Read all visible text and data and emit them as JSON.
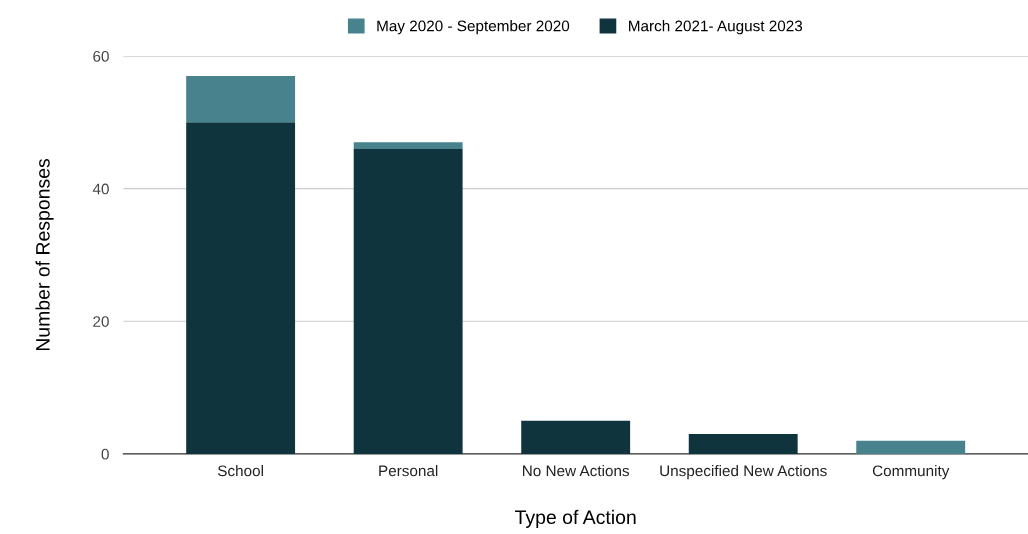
{
  "chart_data": {
    "type": "bar",
    "stacked": true,
    "xlabel": "Type of Action",
    "ylabel": "Number of Responses",
    "categories": [
      "School",
      "Personal",
      "No New Actions",
      "Unspecified New Actions",
      "Community"
    ],
    "series": [
      {
        "name": "March 2021- August 2023",
        "color": "#0f343e",
        "values": [
          50,
          46,
          5,
          3,
          0
        ]
      },
      {
        "name": "May 2020 - September 2020",
        "color": "#47828d",
        "values": [
          7,
          1,
          0,
          0,
          2
        ]
      }
    ],
    "ylim": [
      0,
      60
    ],
    "yticks": [
      0,
      20,
      40,
      60
    ],
    "grid": "y",
    "legend": "top"
  }
}
